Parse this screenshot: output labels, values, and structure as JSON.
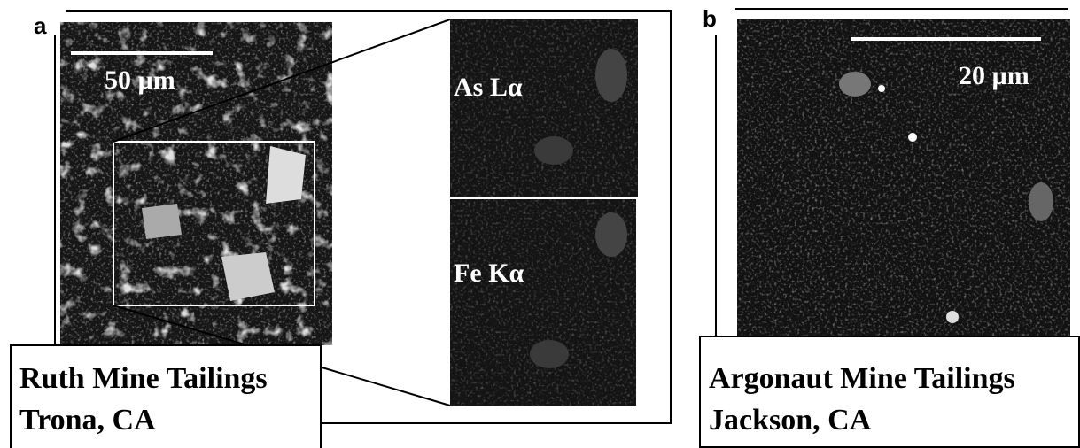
{
  "panel_a": {
    "label": "a",
    "scale_bar": "50 µm",
    "maps": [
      "As Lα",
      "Fe Kα"
    ],
    "caption": [
      "Ruth Mine Tailings",
      "Trona, CA"
    ]
  },
  "panel_b": {
    "label": "b",
    "scale_bar": "20 µm",
    "caption": [
      "Argonaut Mine Tailings",
      "Jackson, CA"
    ]
  }
}
